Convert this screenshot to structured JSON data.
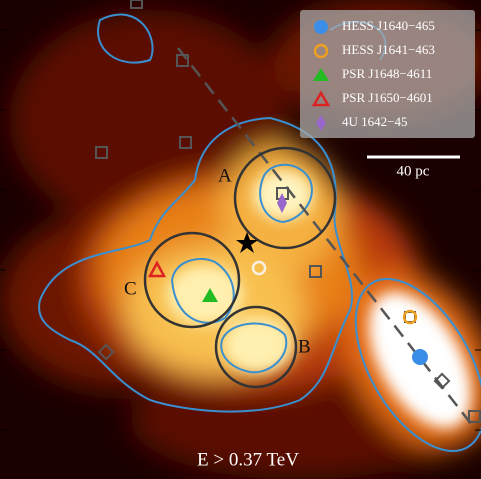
{
  "legend": {
    "items": [
      {
        "label": "HESS J1640−465",
        "color": "#3b8ee8",
        "marker": "filled-circle"
      },
      {
        "label": "HESS J1641−463",
        "color": "#f0a020",
        "marker": "open-circle"
      },
      {
        "label": "PSR J1648−4611",
        "color": "#22bb22",
        "marker": "filled-triangle"
      },
      {
        "label": "PSR J1650−4601",
        "color": "#dd2222",
        "marker": "open-triangle"
      },
      {
        "label": "4U 1642−45",
        "color": "#9966cc",
        "marker": "diamond"
      }
    ]
  },
  "regions": {
    "A": "A",
    "B": "B",
    "C": "C"
  },
  "scale_bar": "40 pc",
  "energy_label": "E > 0.37 TeV"
}
